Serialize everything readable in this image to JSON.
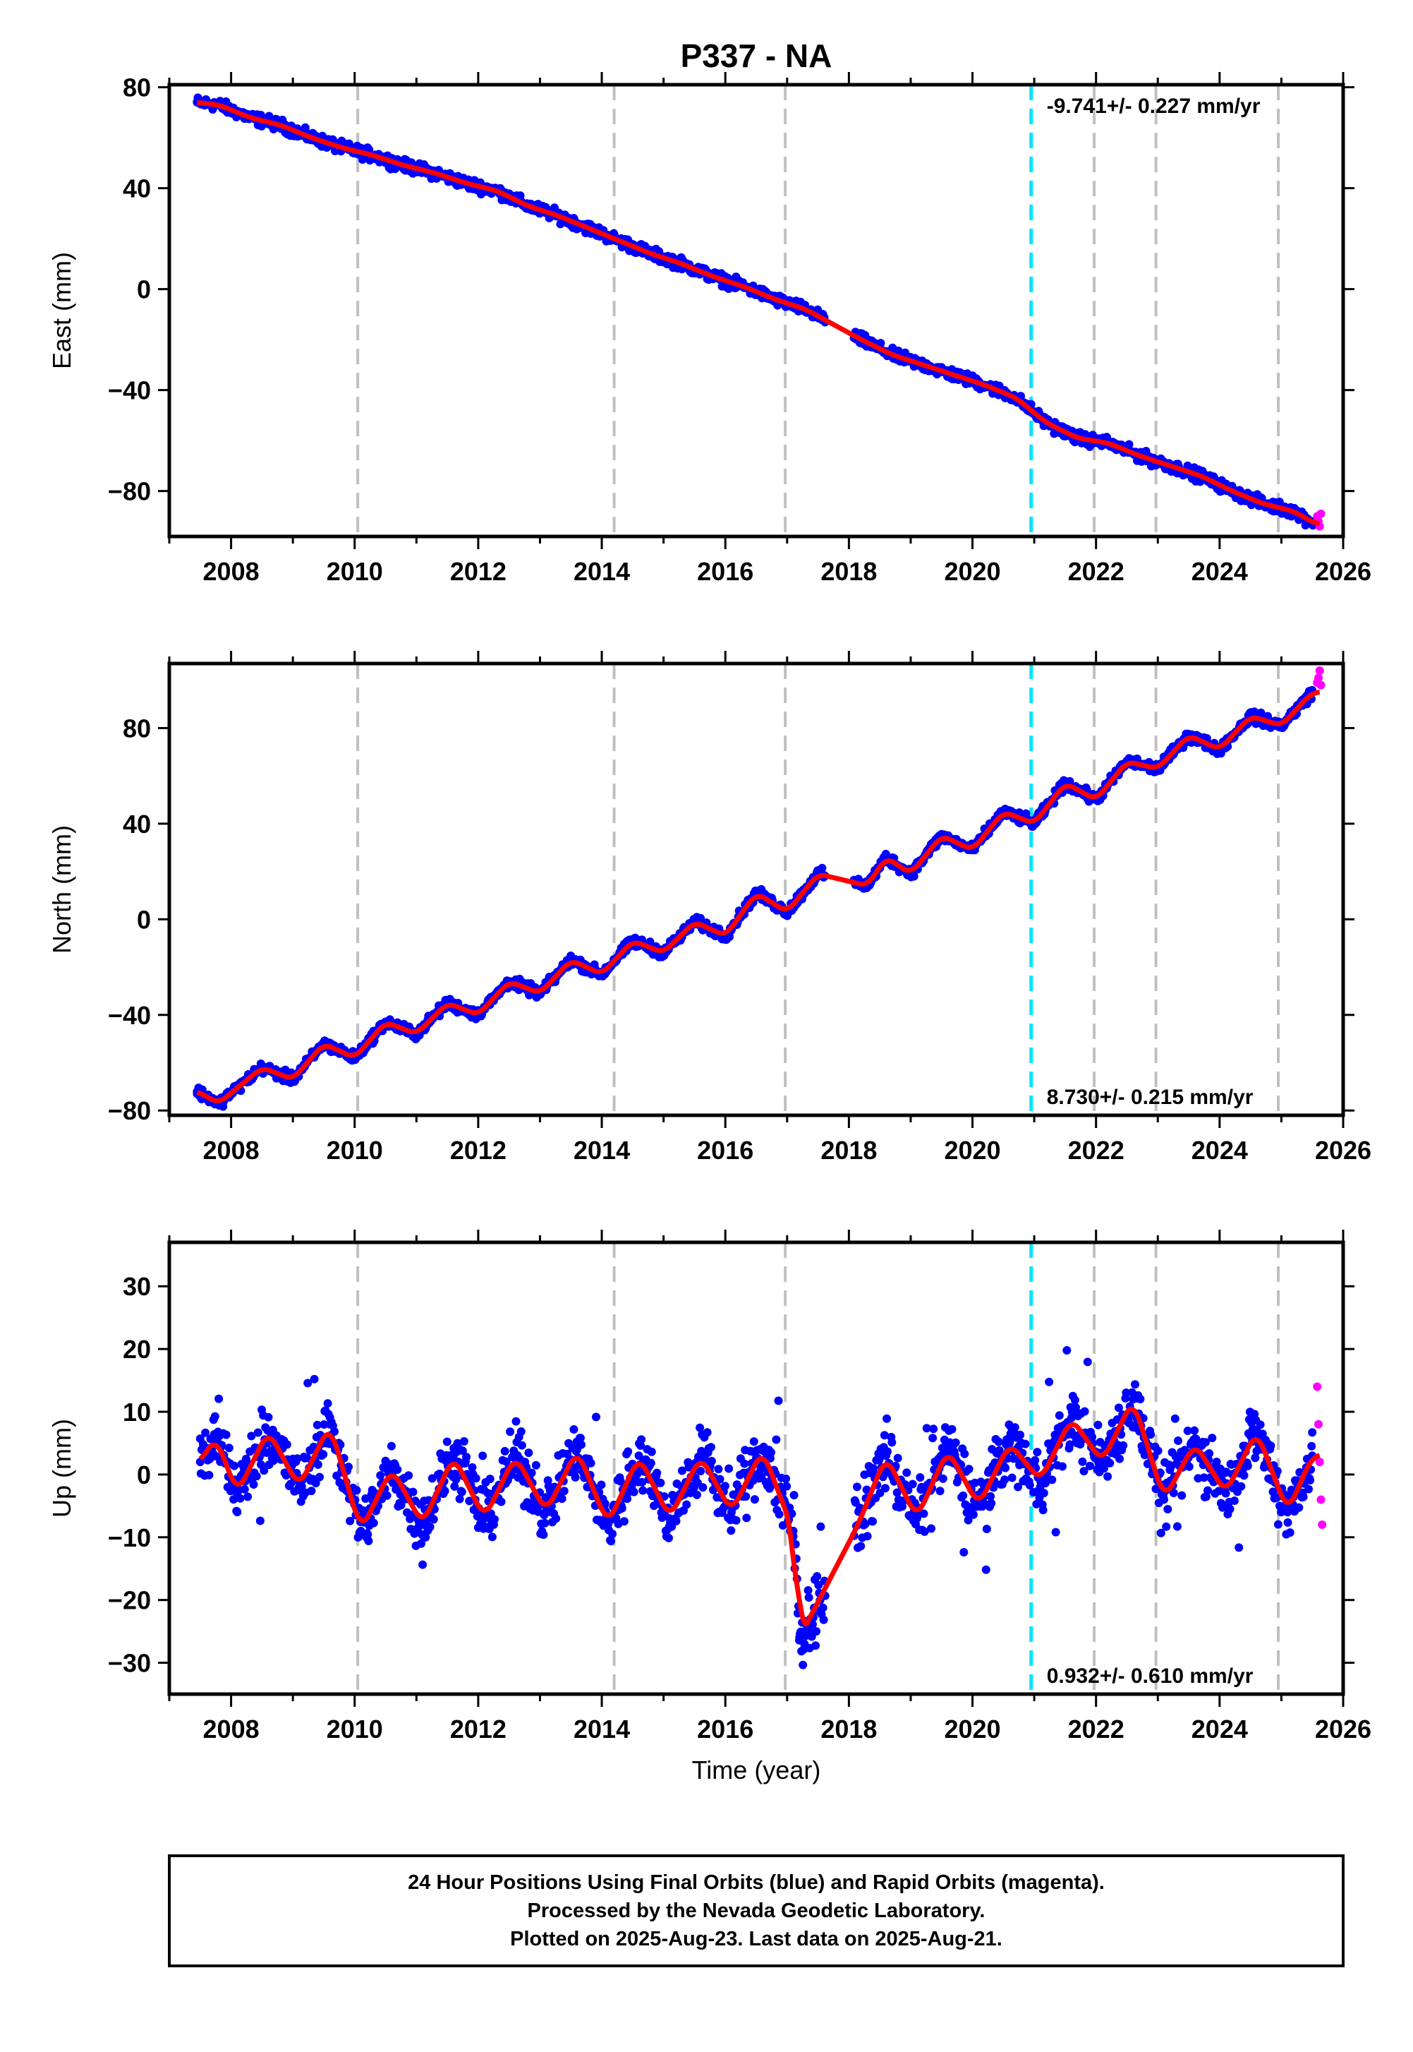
{
  "title": "P337 - NA",
  "xlabel": "Time (year)",
  "footer_lines": [
    "24 Hour Positions Using Final Orbits (blue) and Rapid Orbits (magenta).",
    "Processed by the Nevada Geodetic Laboratory.",
    "Plotted on 2025-Aug-23. Last data on 2025-Aug-21."
  ],
  "colors": {
    "final_orbits": "#0000ff",
    "rapid_orbits": "#ff00ff",
    "model_fit": "#ff0000",
    "equipment_change": "#c0c0c0",
    "earthquake_marker": "#00e5ff"
  },
  "chart_data": [
    {
      "type": "scatter",
      "component": "east",
      "ylabel": "East (mm)",
      "rate_label": "-9.741+/- 0.227 mm/yr",
      "rate_position": "top-right",
      "xlim": [
        2007.0,
        2026.0
      ],
      "ylim": [
        -98,
        81
      ],
      "x_ticks": [
        2008,
        2010,
        2012,
        2014,
        2016,
        2018,
        2020,
        2022,
        2024,
        2026
      ],
      "y_ticks": [
        -80,
        -40,
        0,
        40,
        80
      ],
      "vertical_lines_gray": [
        2010.05,
        2014.2,
        2016.97,
        2021.97,
        2022.97,
        2024.95
      ],
      "vertical_line_cyan": 2020.95,
      "series": [
        {
          "name": "Final Orbits",
          "color": "#0000ff",
          "x": [
            2007.45,
            2007.8,
            2008.3,
            2008.8,
            2009.3,
            2009.8,
            2010.3,
            2010.8,
            2011.3,
            2011.8,
            2012.3,
            2012.8,
            2013.3,
            2013.8,
            2014.3,
            2014.8,
            2015.3,
            2015.8,
            2016.3,
            2016.8,
            2017.3,
            2017.6,
            2018.2,
            2018.7,
            2019.2,
            2019.7,
            2020.2,
            2020.7,
            2021.2,
            2021.7,
            2022.2,
            2022.7,
            2023.2,
            2023.7,
            2024.2,
            2024.7,
            2025.2,
            2025.55
          ],
          "y": [
            74,
            73,
            68,
            65,
            60,
            56,
            53,
            49,
            46,
            42,
            39,
            33,
            29,
            24,
            19,
            14,
            10,
            5,
            1,
            -4,
            -8,
            -12,
            -20,
            -26,
            -30,
            -34,
            -38,
            -43,
            -53,
            -59,
            -61,
            -66,
            -70,
            -74,
            -80,
            -85,
            -88,
            -93
          ]
        },
        {
          "name": "Rapid Orbits",
          "color": "#ff00ff",
          "x": [
            2025.58,
            2025.6,
            2025.62,
            2025.64
          ],
          "y": [
            -90,
            -92,
            -94,
            -89
          ]
        }
      ],
      "model": {
        "type": "linear_plus_seasonal",
        "slope_mm_per_yr": -9.741,
        "y_at_2007_5": 75,
        "annual_amplitude_mm": 1.3,
        "steps": [
          {
            "year": 2020.95,
            "offset_mm": -3
          },
          {
            "year": 2022.97,
            "offset_mm": -1
          }
        ]
      }
    },
    {
      "type": "scatter",
      "component": "north",
      "ylabel": "North (mm)",
      "rate_label": "8.730+/- 0.215 mm/yr",
      "rate_position": "bottom-right",
      "xlim": [
        2007.0,
        2026.0
      ],
      "ylim": [
        -82,
        107
      ],
      "x_ticks": [
        2008,
        2010,
        2012,
        2014,
        2016,
        2018,
        2020,
        2022,
        2024,
        2026
      ],
      "y_ticks": [
        -80,
        -40,
        0,
        40,
        80
      ],
      "vertical_lines_gray": [
        2010.05,
        2014.2,
        2016.97,
        2021.97,
        2022.97,
        2024.95
      ],
      "vertical_line_cyan": 2020.95,
      "series": [
        {
          "name": "Final Orbits",
          "color": "#0000ff",
          "x": [
            2007.45,
            2007.8,
            2008.5,
            2009.0,
            2009.5,
            2010.0,
            2010.5,
            2011.0,
            2011.5,
            2012.0,
            2012.5,
            2013.0,
            2013.5,
            2014.0,
            2014.5,
            2015.0,
            2015.5,
            2016.0,
            2016.5,
            2017.0,
            2017.5,
            2018.3,
            2018.6,
            2019.0,
            2019.5,
            2020.0,
            2020.5,
            2021.0,
            2021.5,
            2022.0,
            2022.5,
            2023.0,
            2023.5,
            2024.0,
            2024.5,
            2025.0,
            2025.5
          ],
          "y": [
            -72,
            -77,
            -62,
            -67,
            -52,
            -58,
            -43,
            -48,
            -35,
            -40,
            -26,
            -31,
            -17,
            -23,
            -9,
            -14,
            -1,
            -7,
            11,
            3,
            19,
            14,
            26,
            19,
            35,
            29,
            45,
            40,
            57,
            50,
            66,
            63,
            77,
            71,
            85,
            81,
            95
          ]
        },
        {
          "name": "Rapid Orbits",
          "color": "#ff00ff",
          "x": [
            2025.58,
            2025.6,
            2025.62,
            2025.64
          ],
          "y": [
            99,
            101,
            104,
            98
          ]
        }
      ],
      "model": {
        "type": "linear_plus_seasonal",
        "slope_mm_per_yr": 8.73,
        "y_at_2007_5": -73,
        "annual_amplitude_mm": 4.5
      }
    },
    {
      "type": "scatter",
      "component": "up",
      "ylabel": "Up (mm)",
      "rate_label": "0.932+/- 0.610 mm/yr",
      "rate_position": "bottom-right",
      "xlim": [
        2007.0,
        2026.0
      ],
      "ylim": [
        -35,
        37
      ],
      "x_ticks": [
        2008,
        2010,
        2012,
        2014,
        2016,
        2018,
        2020,
        2022,
        2024,
        2026
      ],
      "y_ticks": [
        -30,
        -20,
        -10,
        0,
        10,
        20,
        30
      ],
      "vertical_lines_gray": [
        2010.05,
        2014.2,
        2016.97,
        2021.97,
        2022.97,
        2024.95
      ],
      "vertical_line_cyan": 2020.95,
      "series": [
        {
          "name": "Final Orbits",
          "color": "#0000ff",
          "x": [
            2007.5,
            2007.75,
            2008.1,
            2008.6,
            2009.1,
            2009.6,
            2010.1,
            2010.6,
            2011.1,
            2011.6,
            2012.1,
            2012.6,
            2013.1,
            2013.6,
            2014.1,
            2014.6,
            2015.1,
            2015.6,
            2016.1,
            2016.6,
            2017.1,
            2017.2,
            2018.15,
            2018.6,
            2019.1,
            2019.6,
            2020.1,
            2020.6,
            2021.1,
            2021.6,
            2022.1,
            2022.6,
            2023.1,
            2023.6,
            2024.1,
            2024.6,
            2025.1,
            2025.5
          ],
          "y": [
            2,
            6,
            -3,
            7,
            -2,
            8,
            -9,
            1,
            -8,
            3,
            -7,
            3,
            -6,
            4,
            -8,
            3,
            -7,
            3,
            -6,
            4,
            -9,
            -26,
            -8,
            3,
            -7,
            4,
            -5,
            5,
            -1,
            9,
            2,
            12,
            -4,
            5,
            -3,
            7,
            -6,
            3
          ]
        },
        {
          "name": "Rapid Orbits",
          "color": "#ff00ff",
          "x": [
            2025.58,
            2025.6,
            2025.62,
            2025.64,
            2025.66
          ],
          "y": [
            14,
            8,
            2,
            -4,
            -8
          ]
        }
      ],
      "model": {
        "type": "linear_plus_seasonal",
        "slope_mm_per_yr": 0.932,
        "y_at_2007_5": -2,
        "annual_amplitude_mm": 5
      }
    }
  ]
}
